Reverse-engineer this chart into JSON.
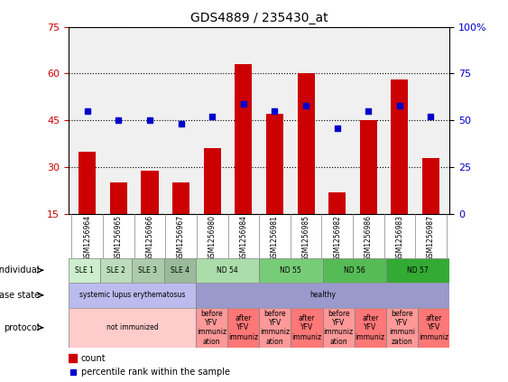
{
  "title": "GDS4889 / 235430_at",
  "samples": [
    "GSM1256964",
    "GSM1256965",
    "GSM1256966",
    "GSM1256967",
    "GSM1256980",
    "GSM1256984",
    "GSM1256981",
    "GSM1256985",
    "GSM1256982",
    "GSM1256986",
    "GSM1256983",
    "GSM1256987"
  ],
  "counts": [
    35,
    25,
    29,
    25,
    36,
    63,
    47,
    60,
    22,
    45,
    58,
    33
  ],
  "percentiles": [
    55,
    50,
    50,
    48,
    52,
    59,
    55,
    58,
    46,
    55,
    58,
    52
  ],
  "ylim_left": [
    15,
    75
  ],
  "ylim_right": [
    0,
    100
  ],
  "yticks_left": [
    15,
    30,
    45,
    60,
    75
  ],
  "yticks_right": [
    0,
    25,
    50,
    75,
    100
  ],
  "bar_color": "#CC0000",
  "dot_color": "#0000CC",
  "plot_bg": "#F0F0F0",
  "ind_groups": [
    {
      "label": "SLE 1",
      "start": 0,
      "end": 1,
      "color": "#CCEECC"
    },
    {
      "label": "SLE 2",
      "start": 1,
      "end": 2,
      "color": "#BBDDBB"
    },
    {
      "label": "SLE 3",
      "start": 2,
      "end": 3,
      "color": "#AACCAA"
    },
    {
      "label": "SLE 4",
      "start": 3,
      "end": 4,
      "color": "#99BB99"
    },
    {
      "label": "ND 54",
      "start": 4,
      "end": 6,
      "color": "#AADDAA"
    },
    {
      "label": "ND 55",
      "start": 6,
      "end": 8,
      "color": "#77CC77"
    },
    {
      "label": "ND 56",
      "start": 8,
      "end": 10,
      "color": "#55BB55"
    },
    {
      "label": "ND 57",
      "start": 10,
      "end": 12,
      "color": "#33AA33"
    }
  ],
  "ds_groups": [
    {
      "label": "systemic lupus erythematosus",
      "start": 0,
      "end": 4,
      "color": "#BBBBEE"
    },
    {
      "label": "healthy",
      "start": 4,
      "end": 12,
      "color": "#9999CC"
    }
  ],
  "pr_groups": [
    {
      "label": "not immunized",
      "start": 0,
      "end": 4,
      "color": "#FFCCCC"
    },
    {
      "label": "before\nYFV\nimmuniz\nation",
      "start": 4,
      "end": 5,
      "color": "#FF9999"
    },
    {
      "label": "after\nYFV\nimmuniz",
      "start": 5,
      "end": 6,
      "color": "#FF7777"
    },
    {
      "label": "before\nYFV\nimmuniz\nation",
      "start": 6,
      "end": 7,
      "color": "#FF9999"
    },
    {
      "label": "after\nYFV\nimmuniz",
      "start": 7,
      "end": 8,
      "color": "#FF7777"
    },
    {
      "label": "before\nYFV\nimmuniz\nation",
      "start": 8,
      "end": 9,
      "color": "#FF9999"
    },
    {
      "label": "after\nYFV\nimmuniz",
      "start": 9,
      "end": 10,
      "color": "#FF7777"
    },
    {
      "label": "before\nYFV\nimmuni\nzation",
      "start": 10,
      "end": 11,
      "color": "#FF9999"
    },
    {
      "label": "after\nYFV\nimmuniz",
      "start": 11,
      "end": 12,
      "color": "#FF7777"
    }
  ],
  "row_labels": [
    "individual",
    "disease state",
    "protocol"
  ],
  "legend_count_color": "#CC0000",
  "legend_dot_color": "#0000CC"
}
